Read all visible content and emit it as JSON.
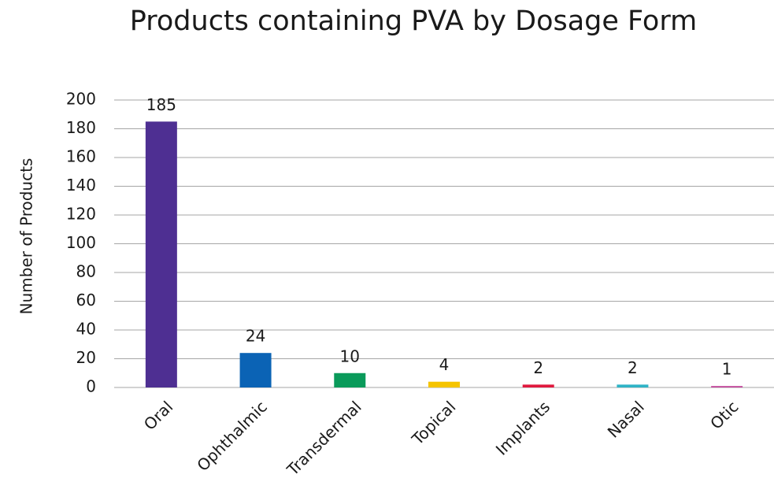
{
  "chart_data": {
    "type": "bar",
    "title": "Products containing PVA by Dosage Form",
    "y_label": "Number of Products",
    "categories": [
      "Oral",
      "Ophthalmic",
      "Transdermal",
      "Topical",
      "Implants",
      "Nasal",
      "Otic"
    ],
    "values": [
      185,
      24,
      10,
      4,
      2,
      2,
      1
    ],
    "colors": [
      "#4e2f92",
      "#0b63b5",
      "#0a9a5a",
      "#f5c400",
      "#e0193e",
      "#2fb3c6",
      "#c2479a"
    ],
    "ylim": [
      0,
      200
    ],
    "yticks": [
      0,
      20,
      40,
      60,
      80,
      100,
      120,
      140,
      160,
      180,
      200
    ],
    "grid": true
  }
}
